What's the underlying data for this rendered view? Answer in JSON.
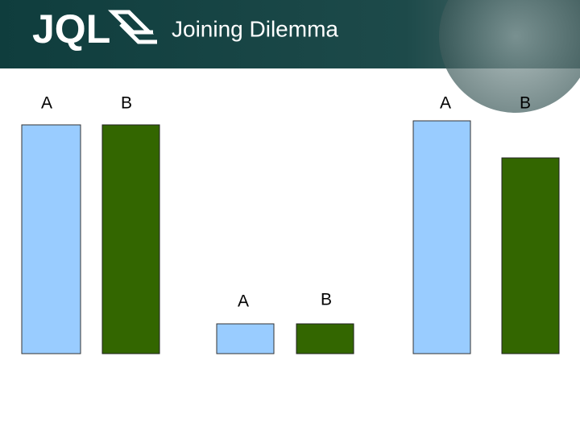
{
  "header": {
    "logo": "JQL",
    "title": "Joining Dilemma"
  },
  "groups": [
    {
      "bars": [
        {
          "label": "A"
        },
        {
          "label": "B"
        }
      ]
    },
    {
      "bars": [
        {
          "label": "A"
        },
        {
          "label": "B"
        }
      ]
    },
    {
      "bars": [
        {
          "label": "A"
        },
        {
          "label": "B"
        }
      ]
    }
  ]
}
